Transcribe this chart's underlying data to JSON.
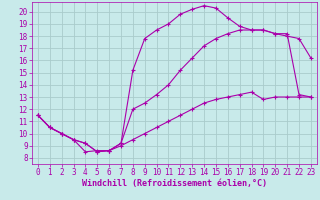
{
  "background_color": "#c8eaea",
  "grid_color": "#aacccc",
  "line_color": "#aa00aa",
  "xlabel": "Windchill (Refroidissement éolien,°C)",
  "xlim": [
    -0.5,
    23.5
  ],
  "ylim": [
    7.5,
    20.8
  ],
  "xticks": [
    0,
    1,
    2,
    3,
    4,
    5,
    6,
    7,
    8,
    9,
    10,
    11,
    12,
    13,
    14,
    15,
    16,
    17,
    18,
    19,
    20,
    21,
    22,
    23
  ],
  "yticks": [
    8,
    9,
    10,
    11,
    12,
    13,
    14,
    15,
    16,
    17,
    18,
    19,
    20
  ],
  "line1_x": [
    0,
    1,
    2,
    3,
    4,
    5,
    6,
    7,
    8,
    9,
    10,
    11,
    12,
    13,
    14,
    15,
    16,
    17,
    18,
    19,
    20,
    21,
    22,
    23
  ],
  "line1_y": [
    11.5,
    10.5,
    10.0,
    9.5,
    8.5,
    8.6,
    8.6,
    9.0,
    9.5,
    10.0,
    10.5,
    11.0,
    11.5,
    12.0,
    12.5,
    12.8,
    13.0,
    13.2,
    13.4,
    12.8,
    13.0,
    13.0,
    13.0,
    13.0
  ],
  "line2_x": [
    0,
    1,
    2,
    3,
    4,
    5,
    6,
    7,
    8,
    9,
    10,
    11,
    12,
    13,
    14,
    15,
    16,
    17,
    18,
    19,
    20,
    21,
    22,
    23
  ],
  "line2_y": [
    11.5,
    10.5,
    10.0,
    9.5,
    9.2,
    8.5,
    8.6,
    9.2,
    12.0,
    12.5,
    13.2,
    14.0,
    15.2,
    16.2,
    17.2,
    17.8,
    18.2,
    18.5,
    18.5,
    18.5,
    18.2,
    18.0,
    17.8,
    16.2
  ],
  "line3_x": [
    0,
    1,
    2,
    3,
    4,
    5,
    6,
    7,
    8,
    9,
    10,
    11,
    12,
    13,
    14,
    15,
    16,
    17,
    18,
    19,
    20,
    21,
    22,
    23
  ],
  "line3_y": [
    11.5,
    10.5,
    10.0,
    9.5,
    9.2,
    8.5,
    8.6,
    9.2,
    15.2,
    17.8,
    18.5,
    19.0,
    19.8,
    20.2,
    20.5,
    20.3,
    19.5,
    18.8,
    18.5,
    18.5,
    18.2,
    18.2,
    13.2,
    13.0
  ],
  "marker": "+",
  "markersize": 3,
  "linewidth": 0.8,
  "xlabel_fontsize": 6,
  "tick_fontsize": 5.5
}
